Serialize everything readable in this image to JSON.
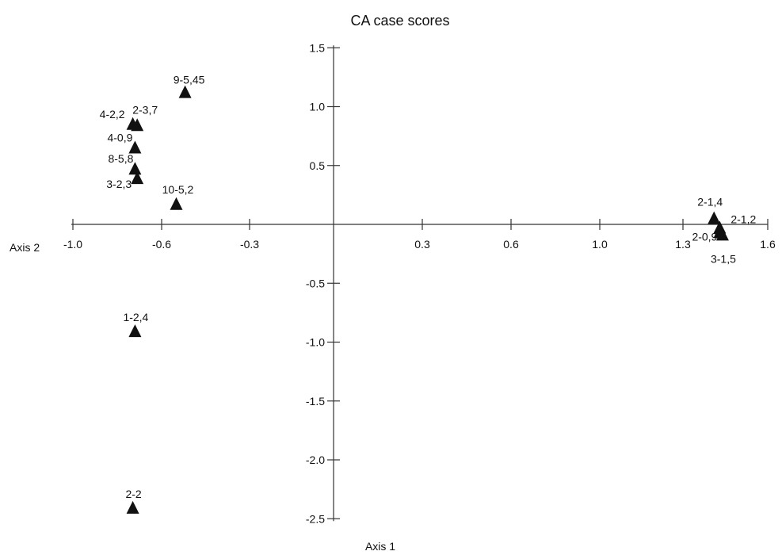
{
  "chart_data": {
    "type": "scatter",
    "title": "CA case scores",
    "xlabel": "Axis 1",
    "ylabel": "Axis 2",
    "x_ticks": [
      "-1.0",
      "-0.6",
      "-0.3",
      "0.3",
      "0.6",
      "1.0",
      "1.3",
      "1.6"
    ],
    "x_tick_values": [
      -1.0,
      -0.6,
      -0.3,
      0.3,
      0.6,
      1.0,
      1.3,
      1.6
    ],
    "y_ticks": [
      "1.5",
      "1.0",
      "0.5",
      "-0.5",
      "-1.0",
      "-1.5",
      "-2.0",
      "-2.5"
    ],
    "y_tick_values": [
      1.5,
      1.0,
      0.5,
      -0.5,
      -1.0,
      -1.5,
      -2.0,
      -2.5
    ],
    "xlim": [
      -1.0,
      1.6
    ],
    "ylim": [
      -2.5,
      1.5
    ],
    "grid": false,
    "marker": "triangle",
    "marker_color": "#111111",
    "points": [
      {
        "label": "9-5,45",
        "x": -0.52,
        "y": 1.12
      },
      {
        "label": "4-2,2",
        "x": -0.73,
        "y": 0.85
      },
      {
        "label": "2-3,7",
        "x": -0.71,
        "y": 0.84
      },
      {
        "label": "4-0,9",
        "x": -0.72,
        "y": 0.65
      },
      {
        "label": "8-5,8",
        "x": -0.72,
        "y": 0.47
      },
      {
        "label": "3-2,3",
        "x": -0.71,
        "y": 0.39
      },
      {
        "label": "10-5,2",
        "x": -0.55,
        "y": 0.17
      },
      {
        "label": "1-2,4",
        "x": -0.72,
        "y": -0.91
      },
      {
        "label": "2-2",
        "x": -0.73,
        "y": -2.41
      },
      {
        "label": "2-1,4",
        "x": 1.41,
        "y": 0.05
      },
      {
        "label": "2-1,2",
        "x": 1.43,
        "y": -0.03
      },
      {
        "label": "2-0,9",
        "x": 1.43,
        "y": -0.07
      },
      {
        "label": "3-1,5",
        "x": 1.44,
        "y": -0.09
      }
    ]
  }
}
